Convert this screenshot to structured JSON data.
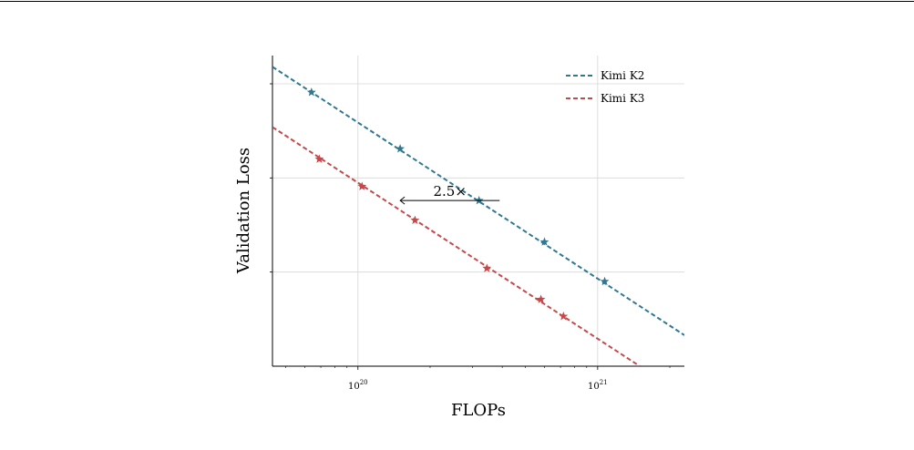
{
  "chart_data": {
    "type": "scatter",
    "title": "",
    "xlabel": "FLOPs",
    "ylabel": "Validation Loss",
    "x_scale": "log",
    "xlim": [
      4.4e+19,
      2.3e+21
    ],
    "ylim": [
      0,
      3.3
    ],
    "x_ticks": [
      {
        "value": 1e+20,
        "base": "10",
        "exp": "20"
      },
      {
        "value": 1e+21,
        "base": "10",
        "exp": "21"
      }
    ],
    "y_ticks": [
      1,
      2,
      3
    ],
    "y_tick_labels_visible": false,
    "grid": true,
    "legend_position": "top-right",
    "series": [
      {
        "name": "Kimi K2",
        "color": "#2e7891",
        "marker": "star",
        "line": "dashed-fit",
        "points": [
          {
            "x": 6.4e+19,
            "y": 2.91
          },
          {
            "x": 1.5e+20,
            "y": 2.31
          },
          {
            "x": 3.2e+20,
            "y": 1.76
          },
          {
            "x": 6e+20,
            "y": 1.32
          },
          {
            "x": 1.07e+21,
            "y": 0.9
          }
        ],
        "fit": [
          {
            "x": 4.4e+19,
            "y": 3.18
          },
          {
            "x": 2.3e+21,
            "y": 0.33
          }
        ]
      },
      {
        "name": "Kimi K3",
        "color": "#c8484a",
        "marker": "star",
        "line": "dashed-fit",
        "points": [
          {
            "x": 6.9e+19,
            "y": 2.2
          },
          {
            "x": 1.04e+20,
            "y": 1.91
          },
          {
            "x": 1.73e+20,
            "y": 1.55
          },
          {
            "x": 3.45e+20,
            "y": 1.04
          },
          {
            "x": 5.8e+20,
            "y": 0.71
          },
          {
            "x": 7.2e+20,
            "y": 0.53
          }
        ],
        "fit": [
          {
            "x": 4.4e+19,
            "y": 2.54
          },
          {
            "x": 1.5e+21,
            "y": 0
          }
        ]
      }
    ],
    "annotations": [
      {
        "text": "2.5×",
        "arrow_from": {
          "x": 3.9e+20,
          "y": 1.76
        },
        "arrow_to": {
          "x": 1.5e+20,
          "y": 1.76
        }
      }
    ]
  }
}
